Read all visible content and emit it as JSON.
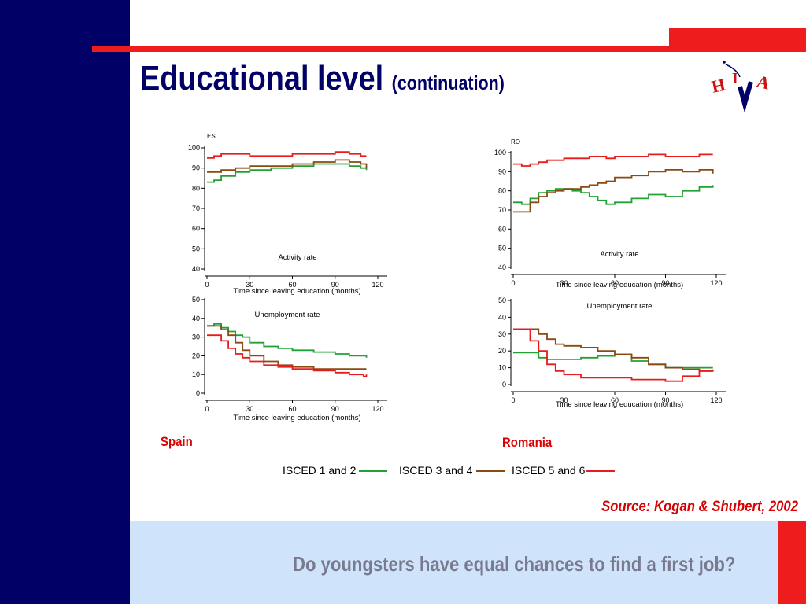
{
  "slide": {
    "title": "Educational level",
    "title_sub": "(continuation)",
    "logo_text": "HIVA",
    "source": "Source: Kogan & Shubert,  2002",
    "footer_question": "Do youngsters have equal chances to find a first job?",
    "country_labels": [
      "Spain",
      "Romania"
    ]
  },
  "colors": {
    "navy": "#000066",
    "red": "#ee1c1c",
    "footer_bg": "#cfe4fa",
    "isced12": "#22a035",
    "isced34": "#8a4a10",
    "isced56": "#e81c1c"
  },
  "legend": [
    {
      "label": "ISCED 1 and 2",
      "color": "#22a035"
    },
    {
      "label": "ISCED 3 and 4",
      "color": "#8a4a10"
    },
    {
      "label": "ISCED 5 and 6",
      "color": "#e81c1c"
    }
  ],
  "chart_data": [
    {
      "type": "line",
      "country": "ES",
      "title": "Activity rate",
      "xlabel": "Time since leaving education (months)",
      "xlim": [
        0,
        120
      ],
      "ylim": [
        40,
        100
      ],
      "xticks": [
        0,
        30,
        60,
        90,
        120
      ],
      "yticks": [
        40,
        50,
        60,
        70,
        80,
        90,
        100
      ],
      "series": [
        {
          "name": "ISCED 1 and 2",
          "x": [
            0,
            5,
            10,
            20,
            30,
            45,
            60,
            75,
            90,
            100,
            108,
            112
          ],
          "y": [
            83,
            84,
            86,
            88,
            89,
            90,
            91,
            92,
            92,
            91,
            90,
            89
          ]
        },
        {
          "name": "ISCED 3 and 4",
          "x": [
            0,
            5,
            10,
            20,
            30,
            45,
            60,
            75,
            90,
            100,
            108,
            112
          ],
          "y": [
            88,
            88,
            89,
            90,
            91,
            91,
            92,
            93,
            94,
            93,
            92,
            90
          ]
        },
        {
          "name": "ISCED 5 and 6",
          "x": [
            0,
            5,
            10,
            20,
            30,
            45,
            60,
            75,
            90,
            100,
            108,
            112
          ],
          "y": [
            95,
            96,
            97,
            97,
            96,
            96,
            97,
            97,
            98,
            97,
            96,
            96
          ]
        }
      ]
    },
    {
      "type": "line",
      "country": "",
      "title": "Unemployment rate",
      "xlabel": "Time since leaving education (months)",
      "xlim": [
        0,
        120
      ],
      "ylim": [
        0,
        50
      ],
      "xticks": [
        0,
        30,
        60,
        90,
        120
      ],
      "yticks": [
        0,
        10,
        20,
        30,
        40,
        50
      ],
      "series": [
        {
          "name": "ISCED 1 and 2",
          "x": [
            0,
            5,
            10,
            15,
            20,
            25,
            30,
            40,
            50,
            60,
            75,
            90,
            100,
            110,
            112
          ],
          "y": [
            36,
            37,
            35,
            33,
            31,
            30,
            27,
            25,
            24,
            23,
            22,
            21,
            20,
            20,
            19
          ]
        },
        {
          "name": "ISCED 3 and 4",
          "x": [
            0,
            5,
            10,
            15,
            20,
            25,
            30,
            40,
            50,
            60,
            75,
            90,
            100,
            110,
            112
          ],
          "y": [
            36,
            36,
            34,
            31,
            27,
            23,
            20,
            17,
            15,
            14,
            13,
            13,
            13,
            13,
            13
          ]
        },
        {
          "name": "ISCED 5 and 6",
          "x": [
            0,
            5,
            10,
            15,
            20,
            25,
            30,
            40,
            50,
            60,
            75,
            90,
            100,
            110,
            112
          ],
          "y": [
            31,
            31,
            28,
            24,
            21,
            19,
            17,
            15,
            14,
            13,
            12,
            11,
            10,
            9,
            10
          ]
        }
      ]
    },
    {
      "type": "line",
      "country": "RO",
      "title": "Activity rate",
      "xlabel": "Time since leaving education (months)",
      "xlim": [
        0,
        120
      ],
      "ylim": [
        40,
        100
      ],
      "xticks": [
        0,
        30,
        60,
        90,
        120
      ],
      "yticks": [
        40,
        50,
        60,
        70,
        80,
        90,
        100
      ],
      "series": [
        {
          "name": "ISCED 1 and 2",
          "x": [
            0,
            5,
            10,
            15,
            20,
            25,
            30,
            35,
            40,
            45,
            50,
            55,
            60,
            70,
            80,
            90,
            100,
            110,
            118
          ],
          "y": [
            74,
            73,
            76,
            79,
            80,
            81,
            81,
            80,
            79,
            77,
            75,
            73,
            74,
            76,
            78,
            77,
            80,
            82,
            83
          ]
        },
        {
          "name": "ISCED 3 and 4",
          "x": [
            0,
            5,
            10,
            15,
            20,
            25,
            30,
            35,
            40,
            45,
            50,
            55,
            60,
            70,
            80,
            90,
            100,
            110,
            118
          ],
          "y": [
            69,
            69,
            74,
            77,
            79,
            80,
            81,
            81,
            82,
            83,
            84,
            85,
            87,
            88,
            90,
            91,
            90,
            91,
            89
          ]
        },
        {
          "name": "ISCED 5 and 6",
          "x": [
            0,
            5,
            10,
            15,
            20,
            25,
            30,
            35,
            40,
            45,
            50,
            55,
            60,
            70,
            80,
            90,
            100,
            110,
            118
          ],
          "y": [
            94,
            93,
            94,
            95,
            96,
            96,
            97,
            97,
            97,
            98,
            98,
            97,
            98,
            98,
            99,
            98,
            98,
            99,
            99
          ]
        }
      ]
    },
    {
      "type": "line",
      "country": "",
      "title": "Unemployment rate",
      "xlabel": "Time since leaving education (months)",
      "xlim": [
        0,
        120
      ],
      "ylim": [
        0,
        50
      ],
      "xticks": [
        0,
        30,
        60,
        90,
        120
      ],
      "yticks": [
        0,
        10,
        20,
        30,
        40,
        50
      ],
      "series": [
        {
          "name": "ISCED 1 and 2",
          "x": [
            0,
            5,
            10,
            15,
            20,
            25,
            30,
            40,
            50,
            60,
            70,
            80,
            90,
            100,
            110,
            118
          ],
          "y": [
            19,
            19,
            19,
            16,
            15,
            15,
            15,
            16,
            17,
            18,
            14,
            12,
            10,
            10,
            10,
            10
          ]
        },
        {
          "name": "ISCED 3 and 4",
          "x": [
            0,
            5,
            10,
            15,
            20,
            25,
            30,
            40,
            50,
            60,
            70,
            80,
            90,
            100,
            110,
            118
          ],
          "y": [
            33,
            33,
            33,
            30,
            27,
            24,
            23,
            22,
            20,
            18,
            16,
            12,
            10,
            9,
            8,
            8
          ]
        },
        {
          "name": "ISCED 5 and 6",
          "x": [
            0,
            5,
            10,
            15,
            20,
            25,
            30,
            40,
            50,
            60,
            70,
            80,
            90,
            100,
            110,
            118
          ],
          "y": [
            33,
            33,
            26,
            20,
            12,
            8,
            6,
            4,
            4,
            4,
            3,
            3,
            2,
            5,
            8,
            9
          ]
        }
      ]
    }
  ]
}
